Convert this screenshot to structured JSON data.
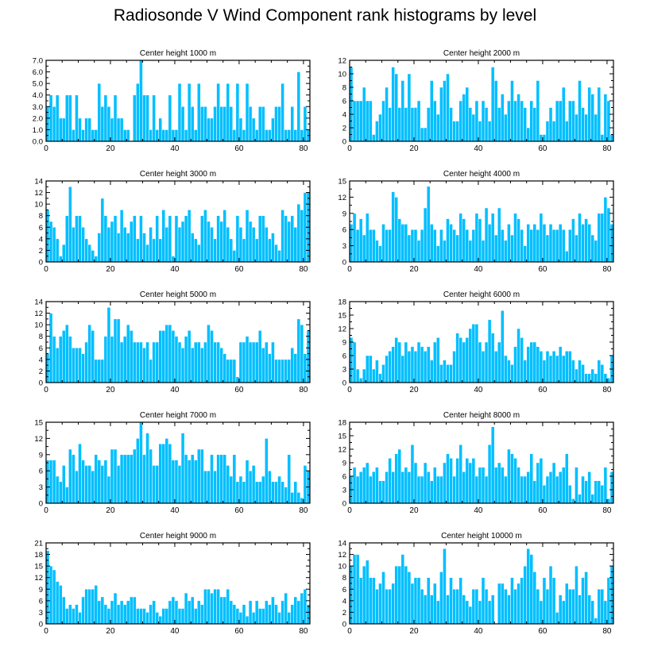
{
  "title": "Radiosonde V Wind Component rank histograms by level",
  "colors": {
    "bar": "#00BFFF",
    "bar_edge": "#ffffff",
    "axis": "#000000"
  },
  "chart_data": [
    {
      "type": "bar",
      "title": "Center height 1000 m",
      "x": "rank 0-81",
      "ylim": [
        0,
        7
      ],
      "yticks": [
        "0.0",
        "1.0",
        "2.0",
        "3.0",
        "4.0",
        "5.0",
        "6.0",
        "7.0"
      ],
      "xticks": [
        "0",
        "20",
        "40",
        "60",
        "80"
      ],
      "y_side": "left",
      "values": [
        3,
        4,
        3,
        4,
        2,
        2,
        4,
        4,
        1,
        4,
        2,
        1,
        2,
        2,
        1,
        1,
        5,
        3,
        4,
        3,
        2,
        4,
        2,
        2,
        1,
        1,
        0,
        4,
        5,
        7,
        4,
        4,
        1,
        4,
        1,
        2,
        1,
        1,
        4,
        1,
        1,
        5,
        3,
        1,
        5,
        3,
        1,
        5,
        3,
        3,
        2,
        2,
        3,
        5,
        3,
        3,
        5,
        3,
        1,
        5,
        2,
        1,
        5,
        3,
        2,
        1,
        3,
        3,
        1,
        1,
        2,
        3,
        3,
        5,
        1,
        1,
        3,
        1,
        6,
        1,
        3,
        1
      ]
    },
    {
      "type": "bar",
      "title": "Center height 2000 m",
      "x": "rank 0-81",
      "ylim": [
        0,
        12
      ],
      "yticks": [
        "0",
        "2",
        "4",
        "6",
        "8",
        "10",
        "12"
      ],
      "xticks": [
        "0",
        "20",
        "40",
        "60",
        "80"
      ],
      "y_side": "right",
      "values": [
        11,
        6,
        6,
        6,
        8,
        6,
        6,
        1,
        3,
        4,
        6,
        8,
        5,
        11,
        10,
        5,
        9,
        5,
        10,
        5,
        5,
        6,
        2,
        2,
        5,
        9,
        6,
        4,
        8,
        9,
        10,
        5,
        3,
        3,
        6,
        7,
        8,
        5,
        4,
        6,
        3,
        6,
        5,
        3,
        11,
        9,
        5,
        7,
        4,
        6,
        9,
        6,
        7,
        6,
        5,
        2,
        6,
        5,
        9,
        1,
        1,
        3,
        5,
        3,
        6,
        6,
        8,
        3,
        6,
        6,
        4,
        9,
        5,
        4,
        8,
        7,
        4,
        8,
        1,
        7,
        6,
        1
      ]
    },
    {
      "type": "bar",
      "title": "Center height 3000 m",
      "x": "rank 0-81",
      "ylim": [
        0,
        14
      ],
      "yticks": [
        "0",
        "2",
        "4",
        "6",
        "8",
        "10",
        "12",
        "14"
      ],
      "xticks": [
        "0",
        "20",
        "40",
        "60",
        "80"
      ],
      "y_side": "left",
      "values": [
        9,
        7,
        6,
        4,
        1,
        3,
        8,
        13,
        6,
        8,
        8,
        6,
        4,
        3,
        2,
        1,
        5,
        11,
        8,
        6,
        7,
        8,
        5,
        9,
        6,
        5,
        7,
        8,
        4,
        8,
        5,
        3,
        6,
        4,
        8,
        4,
        9,
        6,
        8,
        1,
        8,
        6,
        7,
        8,
        9,
        5,
        4,
        3,
        8,
        9,
        7,
        6,
        4,
        8,
        7,
        9,
        6,
        4,
        2,
        8,
        6,
        4,
        9,
        7,
        6,
        4,
        8,
        8,
        6,
        4,
        5,
        3,
        2,
        9,
        8,
        7,
        8,
        6,
        10,
        9,
        12,
        12
      ]
    },
    {
      "type": "bar",
      "title": "Center height 4000 m",
      "x": "rank 0-81",
      "ylim": [
        0,
        15
      ],
      "yticks": [
        "0",
        "3",
        "6",
        "9",
        "12",
        "15"
      ],
      "xticks": [
        "0",
        "20",
        "40",
        "60",
        "80"
      ],
      "y_side": "right",
      "values": [
        7,
        9,
        6,
        8,
        5,
        9,
        6,
        6,
        4,
        3,
        7,
        6,
        6,
        13,
        12,
        8,
        7,
        7,
        5,
        6,
        6,
        4,
        6,
        10,
        14,
        7,
        6,
        3,
        6,
        4,
        8,
        7,
        6,
        5,
        9,
        8,
        6,
        4,
        6,
        9,
        8,
        4,
        10,
        7,
        9,
        5,
        10,
        6,
        4,
        7,
        5,
        9,
        8,
        6,
        3,
        7,
        6,
        7,
        6,
        9,
        7,
        5,
        7,
        6,
        6,
        7,
        6,
        2,
        6,
        8,
        5,
        9,
        7,
        8,
        7,
        5,
        4,
        9,
        9,
        12,
        10,
        7
      ]
    },
    {
      "type": "bar",
      "title": "Center height 5000 m",
      "x": "rank 0-81",
      "ylim": [
        0,
        14
      ],
      "yticks": [
        "0",
        "2",
        "4",
        "6",
        "8",
        "10",
        "12",
        "14"
      ],
      "xticks": [
        "0",
        "20",
        "40",
        "60",
        "80"
      ],
      "y_side": "left",
      "values": [
        5,
        12,
        8,
        6,
        8,
        9,
        10,
        8,
        6,
        6,
        6,
        5,
        7,
        10,
        9,
        4,
        4,
        4,
        8,
        13,
        8,
        11,
        11,
        7,
        8,
        10,
        9,
        7,
        7,
        7,
        6,
        7,
        4,
        7,
        7,
        9,
        9,
        10,
        10,
        9,
        8,
        7,
        6,
        8,
        9,
        6,
        7,
        7,
        6,
        7,
        10,
        9,
        7,
        7,
        6,
        5,
        4,
        4,
        4,
        1,
        7,
        7,
        8,
        7,
        7,
        7,
        9,
        6,
        7,
        5,
        7,
        4,
        4,
        4,
        4,
        4,
        6,
        5,
        11,
        10,
        5,
        9
      ]
    },
    {
      "type": "bar",
      "title": "Center height 6000 m",
      "x": "rank 0-81",
      "ylim": [
        0,
        18
      ],
      "yticks": [
        "0",
        "3",
        "6",
        "9",
        "12",
        "15",
        "18"
      ],
      "xticks": [
        "0",
        "20",
        "40",
        "60",
        "80"
      ],
      "y_side": "right",
      "values": [
        10,
        9,
        3,
        1,
        3,
        6,
        6,
        3,
        5,
        2,
        4,
        6,
        7,
        8,
        10,
        9,
        6,
        9,
        7,
        8,
        7,
        9,
        8,
        7,
        8,
        5,
        9,
        10,
        4,
        5,
        4,
        4,
        7,
        11,
        10,
        9,
        10,
        12,
        13,
        13,
        9,
        7,
        9,
        14,
        11,
        7,
        9,
        16,
        6,
        5,
        4,
        8,
        12,
        10,
        5,
        8,
        9,
        9,
        8,
        7,
        5,
        7,
        6,
        7,
        6,
        8,
        6,
        7,
        7,
        5,
        3,
        5,
        4,
        2,
        2,
        3,
        2,
        5,
        4,
        2,
        1,
        6
      ]
    },
    {
      "type": "bar",
      "title": "Center height 7000 m",
      "x": "rank 0-81",
      "ylim": [
        0,
        15
      ],
      "yticks": [
        "0",
        "3",
        "6",
        "9",
        "12",
        "15"
      ],
      "xticks": [
        "0",
        "20",
        "40",
        "60",
        "80"
      ],
      "y_side": "left",
      "values": [
        8,
        8,
        8,
        5,
        4,
        7,
        3,
        10,
        9,
        6,
        11,
        8,
        7,
        7,
        6,
        9,
        8,
        7,
        8,
        5,
        10,
        10,
        7,
        9,
        9,
        9,
        9,
        10,
        12,
        15,
        9,
        13,
        10,
        7,
        7,
        11,
        11,
        12,
        11,
        8,
        8,
        7,
        13,
        9,
        8,
        9,
        8,
        10,
        10,
        6,
        6,
        9,
        6,
        9,
        9,
        9,
        7,
        5,
        9,
        4,
        5,
        4,
        8,
        6,
        7,
        4,
        4,
        5,
        12,
        6,
        4,
        4,
        5,
        4,
        3,
        9,
        2,
        4,
        2,
        1,
        7,
        6
      ]
    },
    {
      "type": "bar",
      "title": "Center height 8000 m",
      "x": "rank 0-81",
      "ylim": [
        0,
        18
      ],
      "yticks": [
        "0",
        "3",
        "6",
        "9",
        "12",
        "15",
        "18"
      ],
      "xticks": [
        "0",
        "20",
        "40",
        "60",
        "80"
      ],
      "y_side": "right",
      "values": [
        6,
        8,
        6,
        7,
        8,
        9,
        6,
        7,
        8,
        5,
        5,
        7,
        10,
        7,
        11,
        12,
        7,
        8,
        7,
        13,
        9,
        6,
        6,
        9,
        7,
        5,
        8,
        6,
        6,
        9,
        11,
        10,
        6,
        10,
        13,
        7,
        10,
        9,
        10,
        6,
        8,
        8,
        6,
        13,
        17,
        8,
        9,
        8,
        6,
        12,
        11,
        10,
        8,
        6,
        6,
        7,
        11,
        5,
        9,
        10,
        4,
        6,
        7,
        9,
        6,
        7,
        8,
        11,
        4,
        1,
        8,
        2,
        6,
        5,
        7,
        2,
        5,
        5,
        4,
        8,
        1,
        7
      ]
    },
    {
      "type": "bar",
      "title": "Center height 9000 m",
      "x": "rank 0-81",
      "ylim": [
        0,
        21
      ],
      "yticks": [
        "0",
        "3",
        "6",
        "9",
        "12",
        "15",
        "18",
        "21"
      ],
      "xticks": [
        "0",
        "20",
        "40",
        "60",
        "80"
      ],
      "y_side": "left",
      "values": [
        19,
        15,
        14,
        11,
        10,
        7,
        4,
        5,
        4,
        5,
        3,
        7,
        9,
        9,
        9,
        10,
        6,
        7,
        5,
        4,
        6,
        8,
        5,
        6,
        5,
        6,
        7,
        7,
        4,
        4,
        4,
        3,
        5,
        6,
        3,
        2,
        4,
        4,
        6,
        7,
        6,
        4,
        4,
        8,
        6,
        7,
        4,
        6,
        5,
        9,
        9,
        8,
        9,
        9,
        7,
        7,
        9,
        6,
        5,
        4,
        3,
        5,
        2,
        6,
        3,
        6,
        4,
        4,
        6,
        5,
        7,
        5,
        3,
        6,
        8,
        3,
        5,
        7,
        6,
        8,
        9,
        5
      ]
    },
    {
      "type": "bar",
      "title": "Center height 10000 m",
      "x": "rank 0-81",
      "ylim": [
        0,
        14
      ],
      "yticks": [
        "0",
        "2",
        "4",
        "6",
        "8",
        "10",
        "12",
        "14"
      ],
      "xticks": [
        "0",
        "20",
        "40",
        "60",
        "80"
      ],
      "y_side": "right",
      "values": [
        10,
        12,
        12,
        8,
        10,
        11,
        8,
        8,
        6,
        7,
        9,
        6,
        6,
        7,
        10,
        10,
        12,
        10,
        9,
        7,
        8,
        8,
        6,
        5,
        8,
        5,
        7,
        4,
        9,
        13,
        5,
        8,
        6,
        6,
        8,
        5,
        4,
        3,
        6,
        6,
        4,
        8,
        6,
        4,
        5,
        0,
        7,
        7,
        6,
        5,
        8,
        6,
        7,
        8,
        10,
        13,
        12,
        9,
        6,
        4,
        8,
        6,
        10,
        8,
        2,
        5,
        4,
        7,
        6,
        6,
        10,
        5,
        8,
        9,
        5,
        4,
        1,
        6,
        6,
        4,
        8,
        10
      ]
    }
  ]
}
